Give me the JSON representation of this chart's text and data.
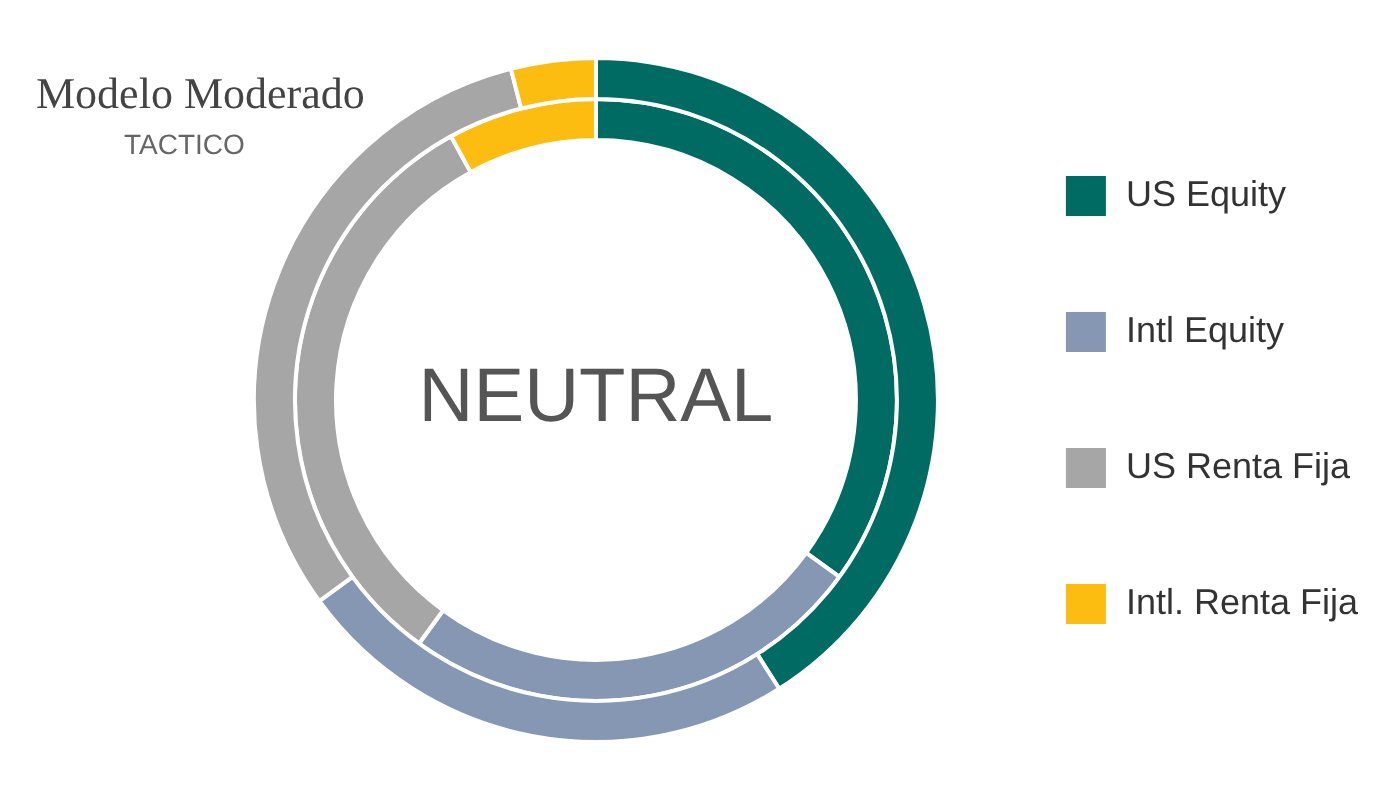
{
  "chart_data": {
    "type": "donut",
    "title": "Modelo Moderado",
    "subtitle": "TACTICO",
    "categories": [
      "US Equity",
      "Intl Equity",
      "US Renta Fija",
      "Intl. Renta Fija"
    ],
    "series": [
      {
        "values": [
          41,
          24,
          31,
          4
        ],
        "colors": [
          "#006b63",
          "#8597b3",
          "#a6a6a6",
          "#fdbd10"
        ]
      },
      {
        "values": [
          35,
          25,
          32,
          8
        ],
        "colors": [
          "#006b63",
          "#8597b3",
          "#a6a6a6",
          "#fdbd10"
        ]
      }
    ],
    "annotations": [
      "NEUTRAL"
    ],
    "legend": "right"
  }
}
